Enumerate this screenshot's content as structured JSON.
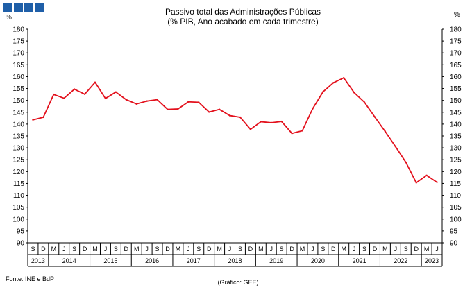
{
  "logo": {
    "colors": [
      "#1f5fa8",
      "#1f5fa8",
      "#1f5fa8",
      "#1f5fa8"
    ]
  },
  "chart_data": {
    "type": "line",
    "title": "Passivo total das Administrações Públicas",
    "subtitle": "(% PIB, Ano acabado em cada trimestre)",
    "ylabel_left": "%",
    "ylabel_right": "%",
    "ylim": [
      90,
      180
    ],
    "yticks": [
      90,
      95,
      100,
      105,
      110,
      115,
      120,
      125,
      130,
      135,
      140,
      145,
      150,
      155,
      160,
      165,
      170,
      175,
      180
    ],
    "x": [
      "2013-S",
      "2013-D",
      "2014-M",
      "2014-J",
      "2014-S",
      "2014-D",
      "2015-M",
      "2015-J",
      "2015-S",
      "2015-D",
      "2016-M",
      "2016-J",
      "2016-S",
      "2016-D",
      "2017-M",
      "2017-J",
      "2017-S",
      "2017-D",
      "2018-M",
      "2018-J",
      "2018-S",
      "2018-D",
      "2019-M",
      "2019-J",
      "2019-S",
      "2019-D",
      "2020-M",
      "2020-J",
      "2020-S",
      "2020-D",
      "2021-M",
      "2021-J",
      "2021-S",
      "2021-D",
      "2022-M",
      "2022-J",
      "2022-S",
      "2022-D",
      "2023-M",
      "2023-J"
    ],
    "quarter_labels": [
      "S",
      "D",
      "M",
      "J",
      "S",
      "D",
      "M",
      "J",
      "S",
      "D",
      "M",
      "J",
      "S",
      "D",
      "M",
      "J",
      "S",
      "D",
      "M",
      "J",
      "S",
      "D",
      "M",
      "J",
      "S",
      "D",
      "M",
      "J",
      "S",
      "D",
      "M",
      "J",
      "S",
      "D",
      "M",
      "J",
      "S",
      "D",
      "M",
      "J"
    ],
    "years": [
      {
        "label": "2013",
        "quarters": 2
      },
      {
        "label": "2014",
        "quarters": 4
      },
      {
        "label": "2015",
        "quarters": 4
      },
      {
        "label": "2016",
        "quarters": 4
      },
      {
        "label": "2017",
        "quarters": 4
      },
      {
        "label": "2018",
        "quarters": 4
      },
      {
        "label": "2019",
        "quarters": 4
      },
      {
        "label": "2020",
        "quarters": 4
      },
      {
        "label": "2021",
        "quarters": 4
      },
      {
        "label": "2022",
        "quarters": 4
      },
      {
        "label": "2023",
        "quarters": 2
      }
    ],
    "series": [
      {
        "color": "#e3101c",
        "values": [
          141.8,
          142.9,
          152.5,
          150.9,
          154.7,
          152.6,
          157.6,
          150.8,
          153.5,
          150.3,
          148.5,
          149.7,
          150.3,
          146.2,
          146.4,
          149.4,
          149.2,
          145.1,
          146.2,
          143.6,
          142.9,
          137.8,
          141.0,
          140.6,
          141.1,
          136.1,
          137.2,
          146.5,
          153.6,
          157.4,
          159.5,
          153.3,
          149.2,
          143.0,
          136.9,
          130.5,
          123.9,
          115.3,
          118.4,
          115.5
        ]
      }
    ],
    "grid": false,
    "legend": "none"
  },
  "footer": {
    "source": "Fonte: INE e BdP",
    "credit": "(Gráfico: GEE)"
  }
}
